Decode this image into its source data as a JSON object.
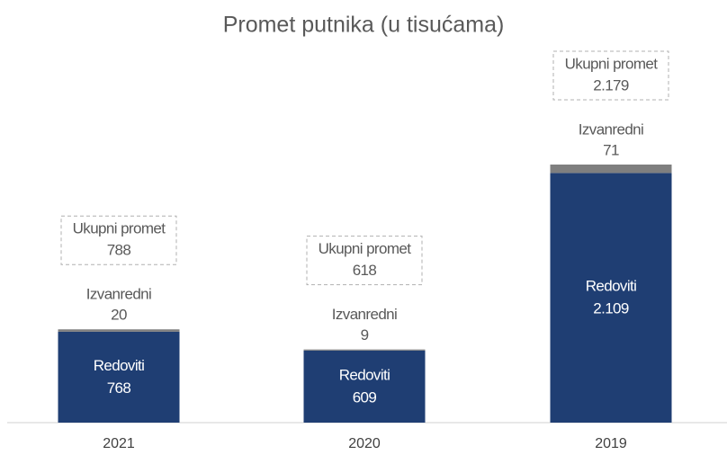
{
  "chart_data": {
    "type": "bar",
    "stacked": true,
    "title": "Promet putnika (u tisućama)",
    "categories": [
      "2021",
      "2020",
      "2019"
    ],
    "series": [
      {
        "name": "Redoviti",
        "color": "#1f3e73",
        "values": [
          768,
          609,
          2109
        ],
        "value_labels": [
          "768",
          "609",
          "2.109"
        ]
      },
      {
        "name": "Izvanredni",
        "color": "#7f7f7f",
        "values": [
          20,
          9,
          71
        ]
      }
    ],
    "totals": {
      "name": "Ukupni promet",
      "values": [
        788,
        618,
        2179
      ],
      "value_labels": [
        "788",
        "618",
        "2.179"
      ]
    }
  }
}
